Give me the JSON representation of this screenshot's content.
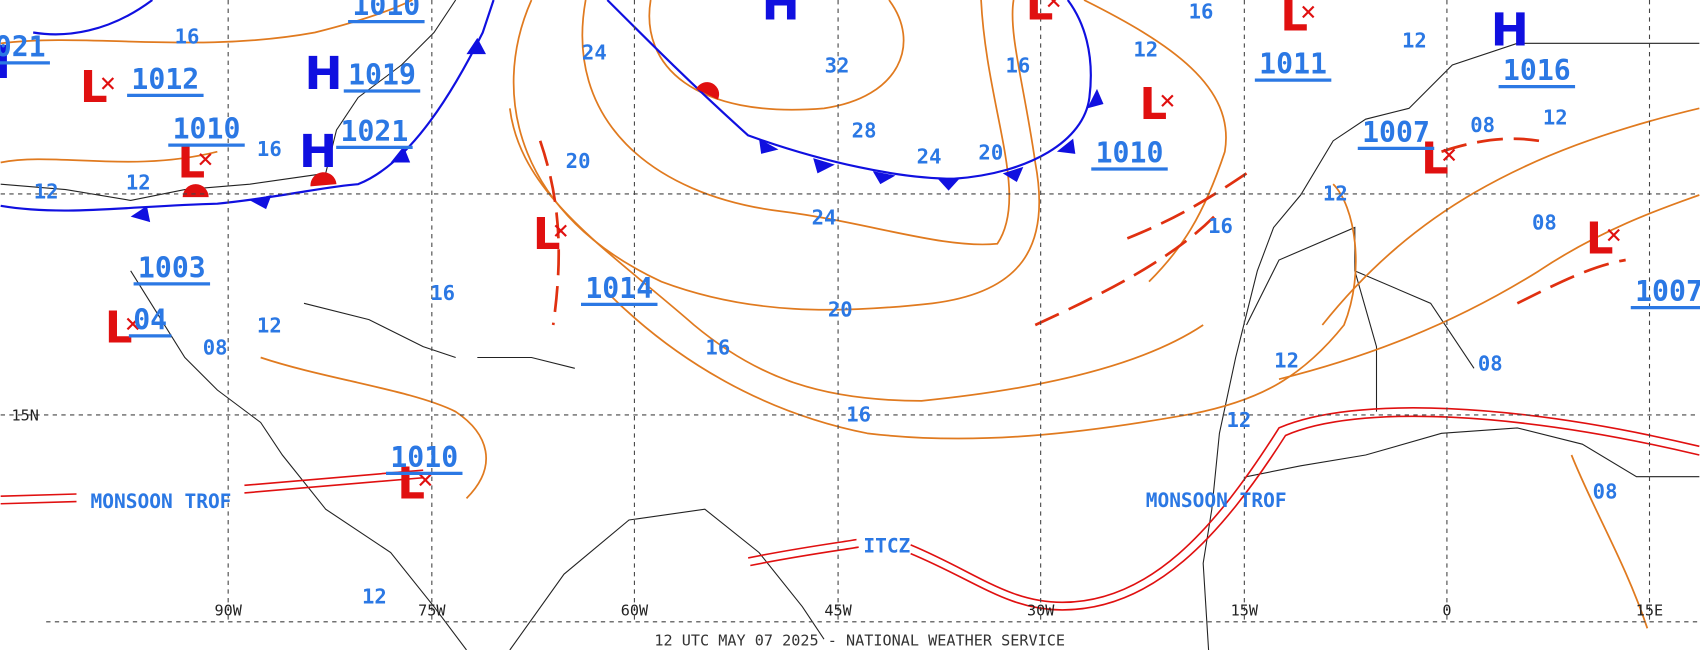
{
  "map": {
    "footer": "12 UTC MAY 07 2025 - NATIONAL WEATHER SERVICE",
    "longitude_labels": [
      "90W",
      "75W",
      "60W",
      "45W",
      "30W",
      "15W",
      "0",
      "15E"
    ],
    "latitude_labels": [
      "15N"
    ],
    "highs": [
      "H",
      "H",
      "H",
      "H",
      "H"
    ],
    "lows": [
      "L",
      "L",
      "L",
      "L",
      "L",
      "L",
      "L",
      "L",
      "L",
      "L"
    ],
    "pressure_labels": [
      "1010",
      "021",
      "1012",
      "1019",
      "1010",
      "1021",
      "1003",
      "04",
      "1014",
      "1010",
      "1011",
      "1016",
      "1007",
      "1007",
      "1010"
    ],
    "isobar_labels": [
      "16",
      "12",
      "12",
      "16",
      "24",
      "32",
      "28",
      "24",
      "20",
      "20",
      "24",
      "20",
      "16",
      "16",
      "16",
      "12",
      "16",
      "16",
      "12",
      "12",
      "12",
      "12",
      "08",
      "12",
      "08",
      "08",
      "08",
      "12",
      "08",
      "16",
      "12"
    ],
    "features": [
      "MONSOON TROF",
      "MONSOON TROF",
      "ITCZ"
    ]
  }
}
